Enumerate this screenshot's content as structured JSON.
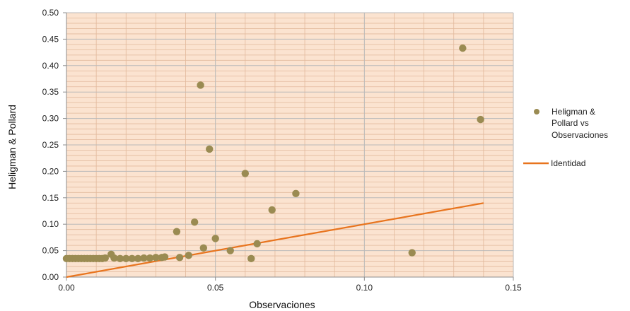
{
  "chart_data": {
    "type": "scatter",
    "xlabel": "Observaciones",
    "ylabel": "Heligman & Pollard",
    "xlim": [
      0,
      0.15
    ],
    "ylim": [
      0,
      0.5
    ],
    "x_ticks": [
      "0.00",
      "0.05",
      "0.10",
      "0.15"
    ],
    "y_ticks": [
      "0.00",
      "0.05",
      "0.10",
      "0.15",
      "0.20",
      "0.25",
      "0.30",
      "0.35",
      "0.40",
      "0.45",
      "0.50"
    ],
    "grid": true,
    "legend_position": "right",
    "legend": {
      "scatter_label_lines": [
        "Heligman &",
        "Pollard vs",
        "Observaciones"
      ],
      "line_label": "Identidad"
    },
    "colors": {
      "marker": "#9a8b52",
      "identity_line": "#e8741e",
      "plot_background": "#fbe3d0",
      "grid_major": "#b9b9b9",
      "grid_minor": "#e2b99c"
    },
    "series": [
      {
        "type": "scatter",
        "points": [
          [
            0.0,
            0.035
          ],
          [
            0.001,
            0.035
          ],
          [
            0.002,
            0.035
          ],
          [
            0.003,
            0.035
          ],
          [
            0.004,
            0.035
          ],
          [
            0.005,
            0.035
          ],
          [
            0.006,
            0.035
          ],
          [
            0.007,
            0.035
          ],
          [
            0.008,
            0.035
          ],
          [
            0.009,
            0.035
          ],
          [
            0.01,
            0.035
          ],
          [
            0.011,
            0.035
          ],
          [
            0.012,
            0.035
          ],
          [
            0.013,
            0.036
          ],
          [
            0.015,
            0.043
          ],
          [
            0.016,
            0.036
          ],
          [
            0.018,
            0.035
          ],
          [
            0.02,
            0.035
          ],
          [
            0.022,
            0.035
          ],
          [
            0.024,
            0.035
          ],
          [
            0.026,
            0.036
          ],
          [
            0.028,
            0.036
          ],
          [
            0.03,
            0.037
          ],
          [
            0.032,
            0.037
          ],
          [
            0.033,
            0.038
          ],
          [
            0.037,
            0.086
          ],
          [
            0.038,
            0.037
          ],
          [
            0.041,
            0.041
          ],
          [
            0.043,
            0.104
          ],
          [
            0.045,
            0.363
          ],
          [
            0.046,
            0.055
          ],
          [
            0.048,
            0.242
          ],
          [
            0.05,
            0.073
          ],
          [
            0.055,
            0.05
          ],
          [
            0.06,
            0.196
          ],
          [
            0.062,
            0.035
          ],
          [
            0.064,
            0.063
          ],
          [
            0.069,
            0.127
          ],
          [
            0.077,
            0.158
          ],
          [
            0.116,
            0.046
          ],
          [
            0.133,
            0.433
          ],
          [
            0.139,
            0.298
          ]
        ]
      },
      {
        "type": "line",
        "points": [
          [
            0,
            0
          ],
          [
            0.14,
            0.14
          ]
        ]
      }
    ]
  }
}
